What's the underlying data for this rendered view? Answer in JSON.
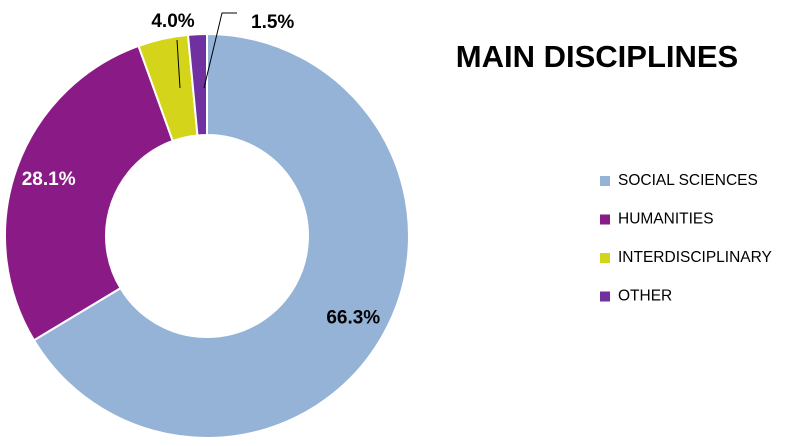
{
  "chart_data": {
    "type": "pie",
    "subtype": "donut",
    "title": "MAIN DISCIPLINES",
    "categories": [
      "SOCIAL SCIENCES",
      "HUMANITIES",
      "INTERDISCIPLINARY",
      "OTHER"
    ],
    "values": [
      66.3,
      28.1,
      4.0,
      1.5
    ],
    "value_labels": [
      "66.3%",
      "28.1%",
      "4.0%",
      "1.5%"
    ],
    "unit": "%",
    "colors": [
      "#95b3d7",
      "#8a1a85",
      "#d4d41a",
      "#7030a0"
    ],
    "label_colors": [
      "#000000",
      "#ffffff",
      "#000000",
      "#000000"
    ],
    "legend_position": "right",
    "start_angle_deg": 0,
    "direction": "clockwise"
  }
}
